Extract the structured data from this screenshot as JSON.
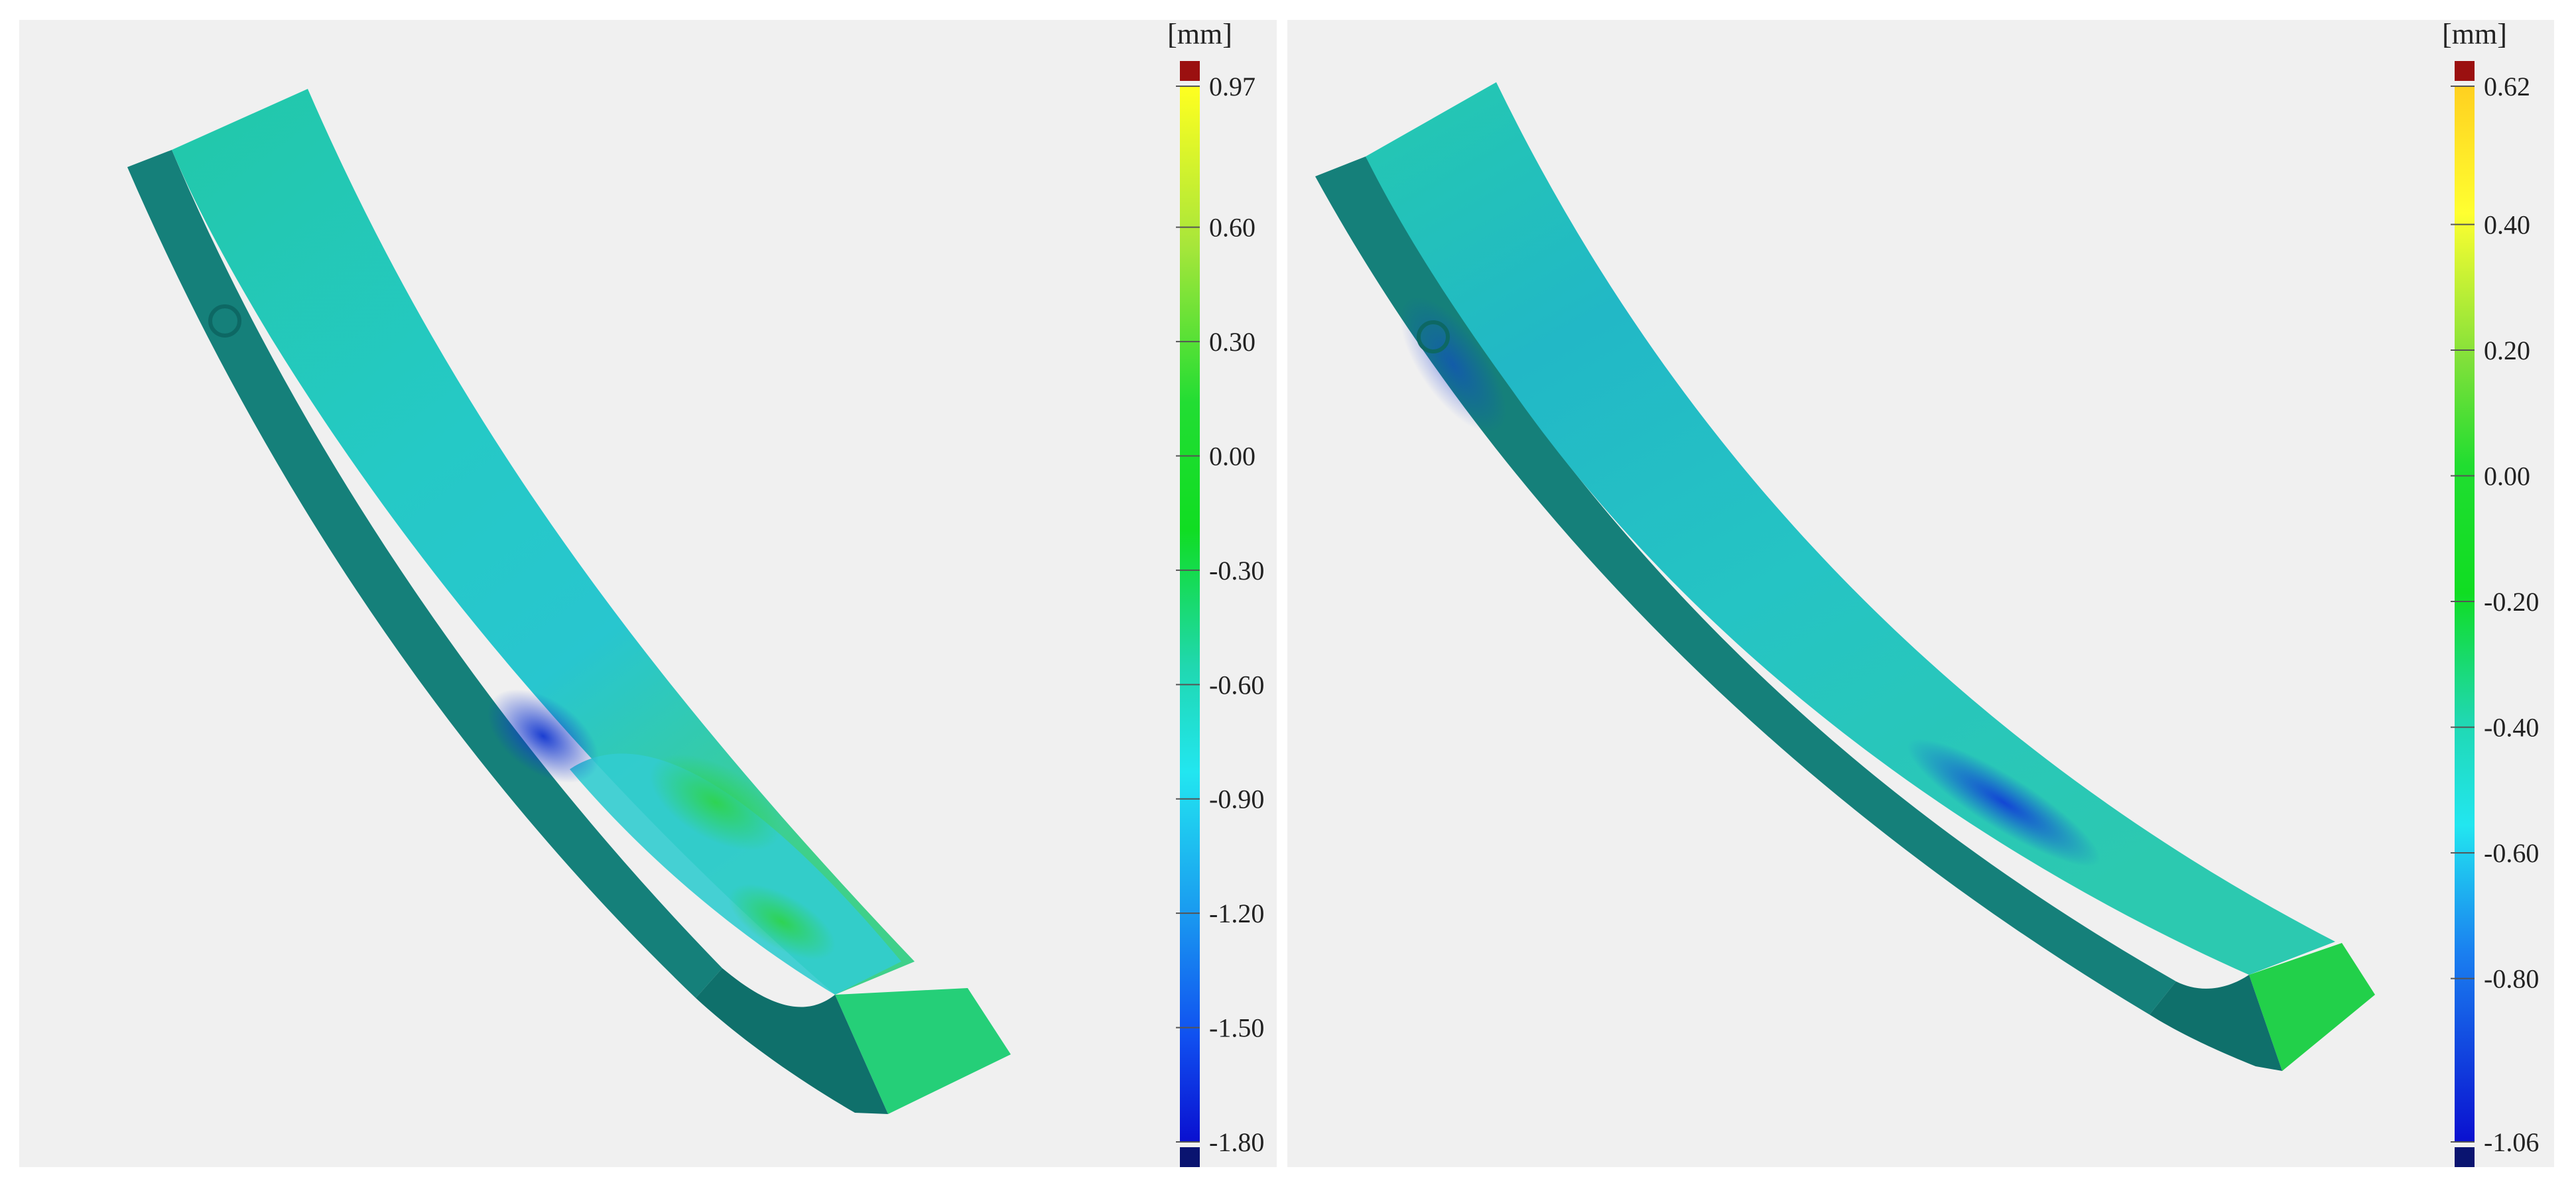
{
  "scans": [
    {
      "id": "left",
      "colorbar": {
        "unit": "[mm]",
        "max": 0.97,
        "min": -1.8,
        "ticks": [
          {
            "value": 0.97,
            "label": "0.97"
          },
          {
            "value": 0.6,
            "label": "0.60"
          },
          {
            "value": 0.3,
            "label": "0.30"
          },
          {
            "value": 0.0,
            "label": "0.00"
          },
          {
            "value": -0.3,
            "label": "-0.30"
          },
          {
            "value": -0.6,
            "label": "-0.60"
          },
          {
            "value": -0.9,
            "label": "-0.90"
          },
          {
            "value": -1.2,
            "label": "-1.20"
          },
          {
            "value": -1.5,
            "label": "-1.50"
          },
          {
            "value": -1.8,
            "label": "-1.80"
          }
        ],
        "over_color": "#9b1010",
        "under_color": "#0a1470"
      }
    },
    {
      "id": "right",
      "colorbar": {
        "unit": "[mm]",
        "max": 0.62,
        "min": -1.06,
        "ticks": [
          {
            "value": 0.62,
            "label": "0.62"
          },
          {
            "value": 0.4,
            "label": "0.40"
          },
          {
            "value": 0.2,
            "label": "0.20"
          },
          {
            "value": 0.0,
            "label": "0.00"
          },
          {
            "value": -0.2,
            "label": "-0.20"
          },
          {
            "value": -0.4,
            "label": "-0.40"
          },
          {
            "value": -0.6,
            "label": "-0.60"
          },
          {
            "value": -0.8,
            "label": "-0.80"
          },
          {
            "value": -1.06,
            "label": "-1.06"
          }
        ],
        "over_color": "#9b1010",
        "under_color": "#0a1470"
      }
    }
  ],
  "colors": {
    "background": "#f0f0f0",
    "part_side": "#15807a",
    "part_side_dark": "#0d6864",
    "surface_cyan": "#25c8c4",
    "surface_green": "#22d07a",
    "surface_blue": "#1040d0"
  }
}
